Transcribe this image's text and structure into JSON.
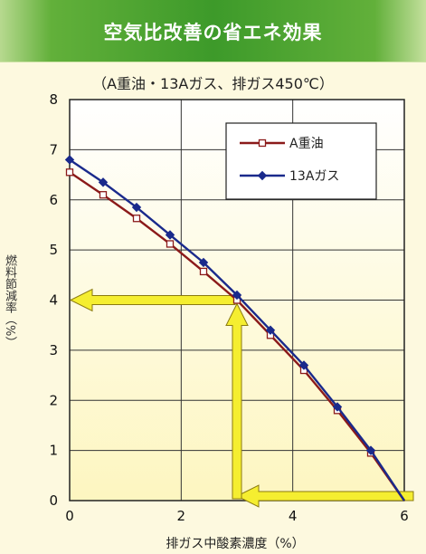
{
  "header": {
    "title": "空気比改善の省エネ効果"
  },
  "chart_data": {
    "type": "line",
    "title": "空気比改善の省エネ効果",
    "subtitle": "（A重油・13Aガス、排ガス450℃）",
    "xlabel": "排ガス中酸素濃度（%）",
    "ylabel": "燃料節減率（%）",
    "xlim": [
      0,
      6
    ],
    "ylim": [
      0,
      8
    ],
    "x_ticks": [
      "0",
      "2",
      "4",
      "6"
    ],
    "y_ticks": [
      "0",
      "1",
      "2",
      "3",
      "4",
      "5",
      "6",
      "7",
      "8"
    ],
    "grid": true,
    "legend_position": "top-right",
    "series": [
      {
        "name": "A重油",
        "color": "#8b1a1a",
        "marker": "square-open",
        "x": [
          0,
          0.6,
          1.2,
          1.8,
          2.4,
          3.0,
          3.6,
          4.2,
          4.8,
          5.4,
          6.0
        ],
        "y": [
          6.55,
          6.1,
          5.63,
          5.12,
          4.57,
          4.0,
          3.3,
          2.6,
          1.8,
          0.95,
          0
        ]
      },
      {
        "name": "13Aガス",
        "color": "#1a2a8c",
        "marker": "diamond-filled",
        "x": [
          0,
          0.6,
          1.2,
          1.8,
          2.4,
          3.0,
          3.6,
          4.2,
          4.8,
          5.4,
          6.0
        ],
        "y": [
          6.8,
          6.35,
          5.85,
          5.3,
          4.75,
          4.1,
          3.4,
          2.7,
          1.87,
          1.0,
          0
        ]
      }
    ],
    "annotations": {
      "arrow_from_x": 6,
      "arrow_to_x": 3,
      "arrow_to_y": 4,
      "color": "#f5ee30"
    }
  }
}
